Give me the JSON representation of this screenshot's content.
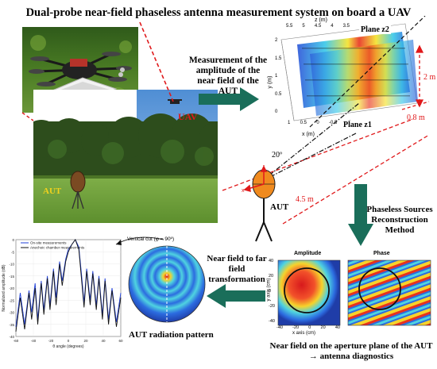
{
  "title": "Dual-probe near-field phaseless antenna measurement system on board a UAV",
  "labels": {
    "uav": "UAV",
    "aut_field": "AUT",
    "aut_icon": "AUT",
    "step1": "Measurement of the amplitude of the near field of the AUT",
    "step2": "Phaseless Sources Reconstruction Method",
    "step3": "Near field to far field transformation",
    "nearfield_caption": "Near field on the aperture plane of the AUT → antenna diagnostics",
    "pattern_caption": "AUT radiation pattern",
    "vertical_cut": "Vertical cut (φ = 90º)",
    "angle_20": "20º",
    "dist_45": "4.5 m",
    "dist_2": "2 m",
    "dist_08": "0.8 m",
    "plane2": "Plane z2",
    "plane1": "Plane z1"
  },
  "grid3d": {
    "z_axis": "z (m)",
    "x_axis": "x (m)",
    "y_axis": "y (m)",
    "z_ticks": [
      "5.5",
      "5",
      "4.5",
      "4",
      "3.5"
    ],
    "y_ticks": [
      "2",
      "1.5",
      "1",
      "0.5",
      "0"
    ],
    "x_ticks": [
      "1",
      "0.5",
      "0",
      "-0.5",
      "-1"
    ]
  },
  "nf_panels": {
    "amp_title": "Amplitude",
    "phase_title": "Phase",
    "x_label": "x axis (cm)",
    "y_label": "y axis (cm)",
    "x_ticks": [
      "-40",
      "-20",
      "0",
      "20",
      "40"
    ],
    "y_ticks": [
      "40",
      "20",
      "0",
      "-20",
      "-40"
    ]
  },
  "chart_data": {
    "type": "line",
    "xlabel": "θ angle (degrees)",
    "ylabel": "Normalized amplitude (dB)",
    "xlim": [
      -60,
      60
    ],
    "ylim": [
      -40,
      0
    ],
    "x_ticks": [
      "-60",
      "-40",
      "-20",
      "0",
      "20",
      "40",
      "60"
    ],
    "y_ticks": [
      "0",
      "-5",
      "-10",
      "-15",
      "-20",
      "-25",
      "-30",
      "-35",
      "-40"
    ],
    "legend": "top-left",
    "series": [
      {
        "name": "On-site measurements",
        "color": "#1f3fd9",
        "x": [
          -60,
          -55,
          -50,
          -45,
          -42,
          -38,
          -35,
          -31,
          -28,
          -24,
          -21,
          -17,
          -14,
          -10,
          -7,
          -3,
          0,
          4,
          8,
          12,
          15,
          18,
          21,
          25,
          28,
          32,
          35,
          39,
          42,
          46,
          50,
          55,
          60
        ],
        "y": [
          -36,
          -22,
          -35,
          -21,
          -30,
          -18,
          -33,
          -17,
          -29,
          -15,
          -27,
          -12,
          -24,
          -9,
          -17,
          -8,
          -4,
          -2,
          0,
          -3,
          -14,
          -26,
          -12,
          -25,
          -13,
          -27,
          -15,
          -31,
          -16,
          -33,
          -20,
          -34,
          -22
        ]
      },
      {
        "name": "Anechoic chamber measurements",
        "color": "#111111",
        "x": [
          -60,
          -55,
          -50,
          -45,
          -42,
          -38,
          -35,
          -31,
          -28,
          -24,
          -21,
          -17,
          -14,
          -10,
          -7,
          -3,
          0,
          4,
          8,
          12,
          15,
          18,
          21,
          25,
          28,
          32,
          35,
          39,
          42,
          46,
          50,
          55,
          60
        ],
        "y": [
          -38,
          -24,
          -37,
          -22,
          -33,
          -20,
          -35,
          -18,
          -31,
          -16,
          -29,
          -13,
          -27,
          -10,
          -19,
          -9,
          -5,
          -2,
          0,
          -4,
          -16,
          -28,
          -13,
          -27,
          -14,
          -29,
          -16,
          -33,
          -17,
          -35,
          -21,
          -36,
          -24
        ]
      }
    ]
  }
}
